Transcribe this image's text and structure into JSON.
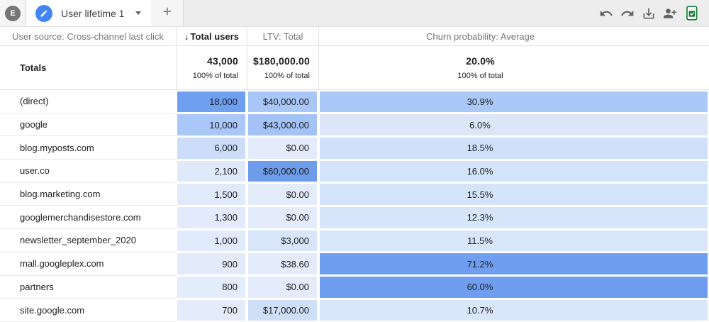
{
  "topbar": {
    "avatar_letter": "E",
    "tab_title": "User lifetime 1"
  },
  "icons": {
    "edit": "pencil",
    "caret": "chevron-down",
    "add_tab": "plus",
    "undo": "undo-arrow",
    "redo": "redo-arrow",
    "download": "download-arrow-tray",
    "share": "person-add",
    "export": "sheets-document-check",
    "sort": "↓"
  },
  "colors": {
    "tab_accent_blue": "#4285f4",
    "sheets_green": "#188038",
    "icon_gray": "#5f6368",
    "heat_dark_blue": "#6f9ff0",
    "heat_light_blue": "#e4ecfb"
  },
  "table": {
    "columns": [
      {
        "label": "User source: Cross-channel last click"
      },
      {
        "label": "Total users",
        "sorted": "descending"
      },
      {
        "label": "LTV: Total"
      },
      {
        "label": "Churn probability: Average"
      }
    ],
    "totals": {
      "label": "Totals",
      "users": "43,000",
      "users_sub": "100% of total",
      "ltv": "$180,000.00",
      "ltv_sub": "100% of total",
      "churn": "20.0%",
      "churn_sub": "100% of total"
    },
    "rows": [
      {
        "source": "(direct)",
        "users": "18,000",
        "ltv": "$40,000.00",
        "churn": "30.9%",
        "users_bg": "#6f9ff0",
        "ltv_bg": "#a8c6f7",
        "churn_bg": "#aac8f8"
      },
      {
        "source": "google",
        "users": "10,000",
        "ltv": "$43,000.00",
        "churn": "6.0%",
        "users_bg": "#a9c7f8",
        "ltv_bg": "#a3c3f6",
        "churn_bg": "#dde6f7"
      },
      {
        "source": "blog.myposts.com",
        "users": "6,000",
        "ltv": "$0.00",
        "churn": "18.5%",
        "users_bg": "#cbddf9",
        "ltv_bg": "#e4ecfb",
        "churn_bg": "#cfe1fa"
      },
      {
        "source": "user.co",
        "users": "2,100",
        "ltv": "$60,000.00",
        "churn": "16.0%",
        "users_bg": "#e0e9fa",
        "ltv_bg": "#6d9ceb",
        "churn_bg": "#d3e3fa"
      },
      {
        "source": "blog.marketing.com",
        "users": "1,500",
        "ltv": "$0.00",
        "churn": "15.5%",
        "users_bg": "#e1eafb",
        "ltv_bg": "#e4ecfb",
        "churn_bg": "#d4e4fa"
      },
      {
        "source": "googlemerchandisestore.com",
        "users": "1,300",
        "ltv": "$0.00",
        "churn": "12.3%",
        "users_bg": "#e2eafb",
        "ltv_bg": "#e4ecfb",
        "churn_bg": "#d7e5fb"
      },
      {
        "source": "newsletter_september_2020",
        "users": "1,000",
        "ltv": "$3,000",
        "churn": "11.5%",
        "users_bg": "#e2ebfb",
        "ltv_bg": "#d9e5f9",
        "churn_bg": "#d8e6fb"
      },
      {
        "source": "mall.googleplex.com",
        "users": "900",
        "ltv": "$38.60",
        "churn": "71.2%",
        "users_bg": "#e3ebfb",
        "ltv_bg": "#e4ecfb",
        "churn_bg": "#6f9ef0"
      },
      {
        "source": "partners",
        "users": "800",
        "ltv": "$0.00",
        "churn": "60.0%",
        "users_bg": "#e3ecfb",
        "ltv_bg": "#e4ecfb",
        "churn_bg": "#6f9ef0"
      },
      {
        "source": "site.google.com",
        "users": "700",
        "ltv": "$17,000.00",
        "churn": "10.7%",
        "users_bg": "#e4ecfb",
        "ltv_bg": "#cfdff8",
        "churn_bg": "#d9e7fb"
      }
    ]
  }
}
